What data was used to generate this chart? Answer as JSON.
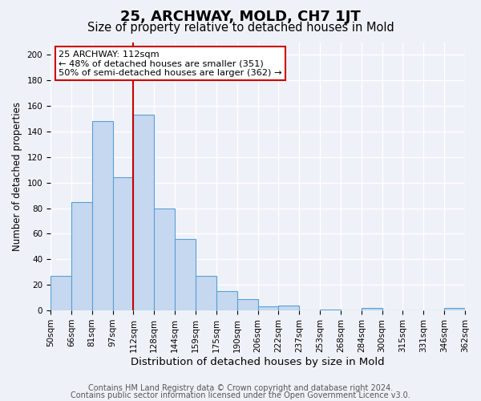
{
  "title": "25, ARCHWAY, MOLD, CH7 1JT",
  "subtitle": "Size of property relative to detached houses in Mold",
  "xlabel": "Distribution of detached houses by size in Mold",
  "ylabel": "Number of detached properties",
  "bin_labels": [
    "50sqm",
    "66sqm",
    "81sqm",
    "97sqm",
    "112sqm",
    "128sqm",
    "144sqm",
    "159sqm",
    "175sqm",
    "190sqm",
    "206sqm",
    "222sqm",
    "237sqm",
    "253sqm",
    "268sqm",
    "284sqm",
    "300sqm",
    "315sqm",
    "331sqm",
    "346sqm",
    "362sqm"
  ],
  "bar_values": [
    27,
    85,
    148,
    104,
    153,
    80,
    56,
    27,
    15,
    9,
    3,
    4,
    0,
    1,
    0,
    2,
    0,
    0,
    0,
    2
  ],
  "bar_color": "#c5d8f0",
  "bar_edge_color": "#5a9fd4",
  "vline_x": 4,
  "vline_color": "#cc0000",
  "ylim": [
    0,
    210
  ],
  "yticks": [
    0,
    20,
    40,
    60,
    80,
    100,
    120,
    140,
    160,
    180,
    200
  ],
  "annotation_title": "25 ARCHWAY: 112sqm",
  "annotation_line1": "← 48% of detached houses are smaller (351)",
  "annotation_line2": "50% of semi-detached houses are larger (362) →",
  "annotation_box_color": "#ffffff",
  "annotation_box_edge": "#cc0000",
  "footer1": "Contains HM Land Registry data © Crown copyright and database right 2024.",
  "footer2": "Contains public sector information licensed under the Open Government Licence v3.0.",
  "bg_color": "#eef2f8",
  "grid_color": "#ffffff",
  "title_fontsize": 13,
  "subtitle_fontsize": 10.5,
  "xlabel_fontsize": 9.5,
  "ylabel_fontsize": 8.5,
  "tick_fontsize": 7.5,
  "footer_fontsize": 7
}
